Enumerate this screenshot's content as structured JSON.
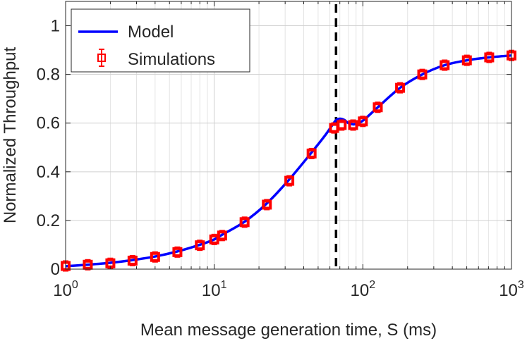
{
  "chart_data": {
    "type": "line",
    "title": "",
    "xlabel": "Mean message generation time, S (ms)",
    "ylabel": "Normalized Throughput",
    "xscale": "log",
    "xlim": [
      1,
      1000
    ],
    "ylim": [
      0,
      1.1
    ],
    "grid": true,
    "legend_position": "top-left",
    "x_ticks": [
      {
        "value": 1,
        "base": "10",
        "exp": "0"
      },
      {
        "value": 10,
        "base": "10",
        "exp": "1"
      },
      {
        "value": 100,
        "base": "10",
        "exp": "2"
      },
      {
        "value": 1000,
        "base": "10",
        "exp": "3"
      }
    ],
    "y_ticks": [
      {
        "value": 0,
        "label": "0"
      },
      {
        "value": 0.2,
        "label": "0.2"
      },
      {
        "value": 0.4,
        "label": "0.4"
      },
      {
        "value": 0.6,
        "label": "0.6"
      },
      {
        "value": 0.8,
        "label": "0.8"
      },
      {
        "value": 1,
        "label": "1"
      }
    ],
    "vline": {
      "x": 66,
      "style": "dashed",
      "color": "#000000"
    },
    "series": [
      {
        "name": "Model",
        "style": "line",
        "color": "#0000ff",
        "x": [
          1,
          1.4,
          2,
          2.8,
          4,
          5.6,
          8,
          10,
          11.2,
          16,
          22.4,
          31.6,
          45,
          55,
          62,
          66,
          70,
          75,
          80,
          88,
          100,
          126,
          178,
          251,
          355,
          501,
          708,
          1000
        ],
        "y": [
          0.012,
          0.018,
          0.026,
          0.037,
          0.052,
          0.072,
          0.1,
          0.122,
          0.14,
          0.195,
          0.268,
          0.365,
          0.478,
          0.545,
          0.59,
          0.612,
          0.618,
          0.613,
          0.6,
          0.595,
          0.61,
          0.665,
          0.745,
          0.8,
          0.838,
          0.858,
          0.87,
          0.878
        ]
      },
      {
        "name": "Simulations",
        "style": "markers",
        "marker": "square",
        "color": "#ff0000",
        "x": [
          1,
          1.41,
          2,
          2.82,
          4,
          5.65,
          8,
          10,
          11.3,
          16,
          22.6,
          32,
          45.2,
          64,
          72,
          86,
          100,
          126,
          178,
          251,
          355,
          501,
          708,
          1000
        ],
        "y": [
          0.013,
          0.018,
          0.024,
          0.035,
          0.05,
          0.07,
          0.098,
          0.122,
          0.138,
          0.193,
          0.265,
          0.363,
          0.475,
          0.58,
          0.592,
          0.592,
          0.607,
          0.665,
          0.745,
          0.8,
          0.838,
          0.858,
          0.87,
          0.878
        ]
      }
    ]
  }
}
